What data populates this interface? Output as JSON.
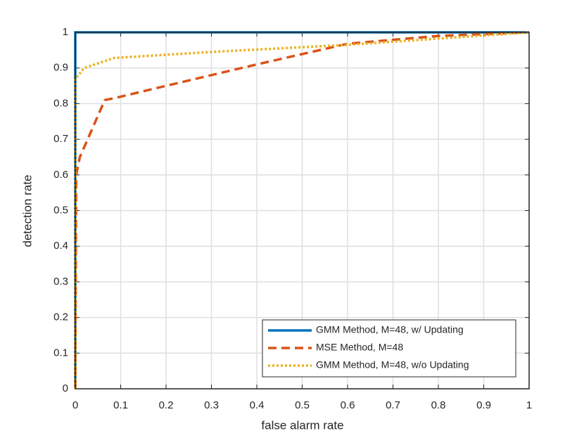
{
  "chart_data": {
    "type": "line",
    "xlabel": "false alarm rate",
    "ylabel": "detection rate",
    "xlim": [
      0,
      1
    ],
    "ylim": [
      0,
      1
    ],
    "xticks": [
      0,
      0.1,
      0.2,
      0.3,
      0.4,
      0.5,
      0.6,
      0.7,
      0.8,
      0.9,
      1
    ],
    "yticks": [
      0,
      0.1,
      0.2,
      0.3,
      0.4,
      0.5,
      0.6,
      0.7,
      0.8,
      0.9,
      1
    ],
    "grid": true,
    "legend": "lower right",
    "series": [
      {
        "name": "GMM Method, M=48, w/ Updating",
        "color": "#0072bd",
        "dash": "solid",
        "x": [
          0,
          0,
          1
        ],
        "values": [
          0,
          1,
          1
        ]
      },
      {
        "name": "MSE Method, M=48",
        "color": "#d95319",
        "dash": "dashed",
        "x": [
          0,
          0.002,
          0.01,
          0.065,
          0.085,
          0.2,
          0.4,
          0.6,
          0.8,
          1
        ],
        "values": [
          0,
          0.6,
          0.65,
          0.81,
          0.815,
          0.85,
          0.91,
          0.968,
          0.99,
          1
        ]
      },
      {
        "name": "GMM Method, M=48, w/o Updating",
        "color": "#edb120",
        "dash": "dotted",
        "x": [
          0,
          0,
          0.02,
          0.085,
          0.3,
          0.6,
          1
        ],
        "values": [
          0,
          0.87,
          0.9,
          0.928,
          0.945,
          0.965,
          1
        ]
      }
    ]
  }
}
